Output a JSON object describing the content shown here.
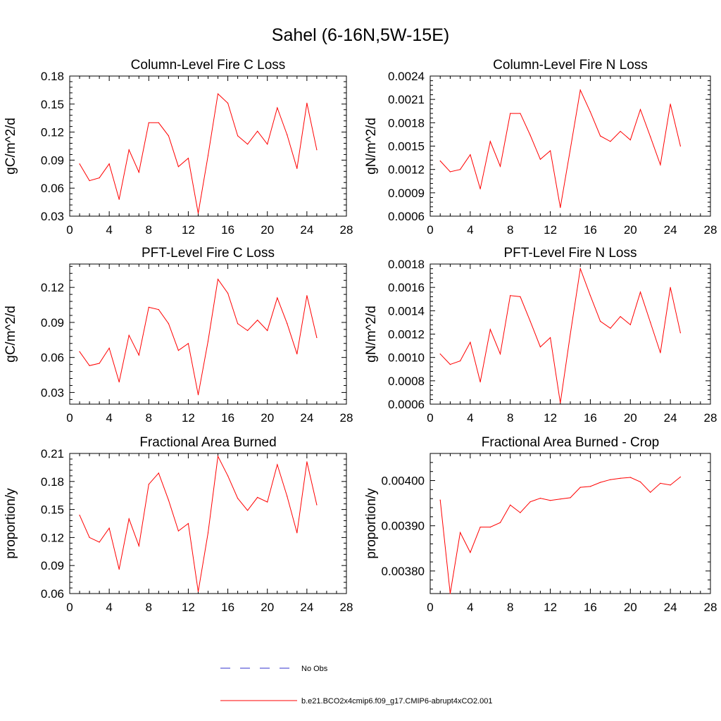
{
  "title": "Sahel (6-16N,5W-15E)",
  "chart_data": [
    {
      "type": "line",
      "title": "Column-Level Fire C Loss",
      "ylabel": "gC/m^2/d",
      "xlim": [
        0,
        28
      ],
      "ylim": [
        0.03,
        0.18
      ],
      "xticks": [
        "0",
        "4",
        "8",
        "12",
        "16",
        "20",
        "24",
        "28"
      ],
      "yticks": [
        "0.03",
        "0.06",
        "0.09",
        "0.12",
        "0.15",
        "0.18"
      ],
      "x": [
        1,
        2,
        3,
        4,
        5,
        6,
        7,
        8,
        9,
        10,
        11,
        12,
        13,
        14,
        15,
        16,
        17,
        18,
        19,
        20,
        21,
        22,
        23,
        24,
        25
      ],
      "series": [
        {
          "name": "b.e21.BCO2x4cmip6.f09_g17.CMIP6-abrupt4xCO2.001",
          "color": "#ff0000",
          "values": [
            0.086,
            0.068,
            0.071,
            0.086,
            0.048,
            0.101,
            0.077,
            0.13,
            0.13,
            0.116,
            0.083,
            0.092,
            0.033,
            0.095,
            0.161,
            0.151,
            0.116,
            0.107,
            0.121,
            0.107,
            0.146,
            0.117,
            0.081,
            0.151,
            0.101
          ]
        }
      ]
    },
    {
      "type": "line",
      "title": "Column-Level Fire N Loss",
      "ylabel": "gN/m^2/d",
      "xlim": [
        0,
        28
      ],
      "ylim": [
        0.0006,
        0.0024
      ],
      "xticks": [
        "0",
        "4",
        "8",
        "12",
        "16",
        "20",
        "24",
        "28"
      ],
      "yticks": [
        "0.0006",
        "0.0009",
        "0.0012",
        "0.0015",
        "0.0018",
        "0.0021",
        "0.0024"
      ],
      "x": [
        1,
        2,
        3,
        4,
        5,
        6,
        7,
        8,
        9,
        10,
        11,
        12,
        13,
        14,
        15,
        16,
        17,
        18,
        19,
        20,
        21,
        22,
        23,
        24,
        25
      ],
      "series": [
        {
          "name": "b.e21.BCO2x4cmip6.f09_g17.CMIP6-abrupt4xCO2.001",
          "color": "#ff0000",
          "values": [
            0.00131,
            0.00117,
            0.0012,
            0.00139,
            0.00095,
            0.00156,
            0.00124,
            0.00192,
            0.00192,
            0.00164,
            0.00133,
            0.00144,
            0.00071,
            0.00146,
            0.00222,
            0.00194,
            0.00163,
            0.00156,
            0.00169,
            0.00158,
            0.00197,
            0.00162,
            0.00126,
            0.00204,
            0.0015
          ]
        }
      ]
    },
    {
      "type": "line",
      "title": "PFT-Level Fire C Loss",
      "ylabel": "gC/m^2/d",
      "xlim": [
        0,
        28
      ],
      "ylim": [
        0.02,
        0.14
      ],
      "xticks": [
        "0",
        "4",
        "8",
        "12",
        "16",
        "20",
        "24",
        "28"
      ],
      "yticks": [
        "0.03",
        "0.06",
        "0.09",
        "0.12"
      ],
      "x": [
        1,
        2,
        3,
        4,
        5,
        6,
        7,
        8,
        9,
        10,
        11,
        12,
        13,
        14,
        15,
        16,
        17,
        18,
        19,
        20,
        21,
        22,
        23,
        24,
        25
      ],
      "series": [
        {
          "name": "b.e21.BCO2x4cmip6.f09_g17.CMIP6-abrupt4xCO2.001",
          "color": "#ff0000",
          "values": [
            0.065,
            0.053,
            0.055,
            0.068,
            0.039,
            0.079,
            0.062,
            0.103,
            0.101,
            0.089,
            0.066,
            0.072,
            0.028,
            0.074,
            0.127,
            0.115,
            0.089,
            0.083,
            0.092,
            0.083,
            0.111,
            0.089,
            0.063,
            0.113,
            0.077
          ]
        }
      ]
    },
    {
      "type": "line",
      "title": "PFT-Level Fire N Loss",
      "ylabel": "gN/m^2/d",
      "xlim": [
        0,
        28
      ],
      "ylim": [
        0.0006,
        0.0018
      ],
      "xticks": [
        "0",
        "4",
        "8",
        "12",
        "16",
        "20",
        "24",
        "28"
      ],
      "yticks": [
        "0.0006",
        "0.0008",
        "0.0010",
        "0.0012",
        "0.0014",
        "0.0016",
        "0.0018"
      ],
      "x": [
        1,
        2,
        3,
        4,
        5,
        6,
        7,
        8,
        9,
        10,
        11,
        12,
        13,
        14,
        15,
        16,
        17,
        18,
        19,
        20,
        21,
        22,
        23,
        24,
        25
      ],
      "series": [
        {
          "name": "b.e21.BCO2x4cmip6.f09_g17.CMIP6-abrupt4xCO2.001",
          "color": "#ff0000",
          "values": [
            0.00103,
            0.00094,
            0.00097,
            0.00113,
            0.00079,
            0.00124,
            0.00103,
            0.00153,
            0.00152,
            0.00131,
            0.00109,
            0.00117,
            0.00061,
            0.0012,
            0.00176,
            0.00153,
            0.00131,
            0.00125,
            0.00135,
            0.00128,
            0.00156,
            0.0013,
            0.00104,
            0.0016,
            0.00121
          ]
        }
      ]
    },
    {
      "type": "line",
      "title": "Fractional Area Burned",
      "ylabel": "proportion/y",
      "xlim": [
        0,
        28
      ],
      "ylim": [
        0.06,
        0.21
      ],
      "xticks": [
        "0",
        "4",
        "8",
        "12",
        "16",
        "20",
        "24",
        "28"
      ],
      "yticks": [
        "0.06",
        "0.09",
        "0.12",
        "0.15",
        "0.18",
        "0.21"
      ],
      "x": [
        1,
        2,
        3,
        4,
        5,
        6,
        7,
        8,
        9,
        10,
        11,
        12,
        13,
        14,
        15,
        16,
        17,
        18,
        19,
        20,
        21,
        22,
        23,
        24,
        25
      ],
      "series": [
        {
          "name": "b.e21.BCO2x4cmip6.f09_g17.CMIP6-abrupt4xCO2.001",
          "color": "#ff0000",
          "values": [
            0.144,
            0.12,
            0.115,
            0.13,
            0.086,
            0.14,
            0.111,
            0.177,
            0.189,
            0.16,
            0.127,
            0.135,
            0.062,
            0.125,
            0.207,
            0.186,
            0.162,
            0.149,
            0.163,
            0.158,
            0.198,
            0.164,
            0.125,
            0.201,
            0.155
          ]
        }
      ]
    },
    {
      "type": "line",
      "title": "Fractional Area Burned - Crop",
      "ylabel": "proportion/y",
      "xlim": [
        0,
        28
      ],
      "ylim": [
        0.00375,
        0.00406
      ],
      "xticks": [
        "0",
        "4",
        "8",
        "12",
        "16",
        "20",
        "24",
        "28"
      ],
      "yticks": [
        "0.00380",
        "0.00390",
        "0.00400"
      ],
      "x": [
        1,
        2,
        3,
        4,
        5,
        6,
        7,
        8,
        9,
        10,
        11,
        12,
        13,
        14,
        15,
        16,
        17,
        18,
        19,
        20,
        21,
        22,
        23,
        24,
        25
      ],
      "series": [
        {
          "name": "b.e21.BCO2x4cmip6.f09_g17.CMIP6-abrupt4xCO2.001",
          "color": "#ff0000",
          "values": [
            0.003957,
            0.00375,
            0.003885,
            0.003841,
            0.003897,
            0.003897,
            0.003907,
            0.003946,
            0.003929,
            0.003953,
            0.003961,
            0.003956,
            0.003959,
            0.003962,
            0.003985,
            0.003987,
            0.003996,
            0.004002,
            0.004005,
            0.004007,
            0.003997,
            0.003974,
            0.003994,
            0.00399,
            0.004008
          ]
        }
      ]
    }
  ],
  "legend": [
    {
      "label": "No Obs",
      "color": "#3333cc",
      "style": "dashed"
    },
    {
      "label": "b.e21.BCO2x4cmip6.f09_g17.CMIP6-abrupt4xCO2.001",
      "color": "#ff0000",
      "style": "solid"
    }
  ]
}
